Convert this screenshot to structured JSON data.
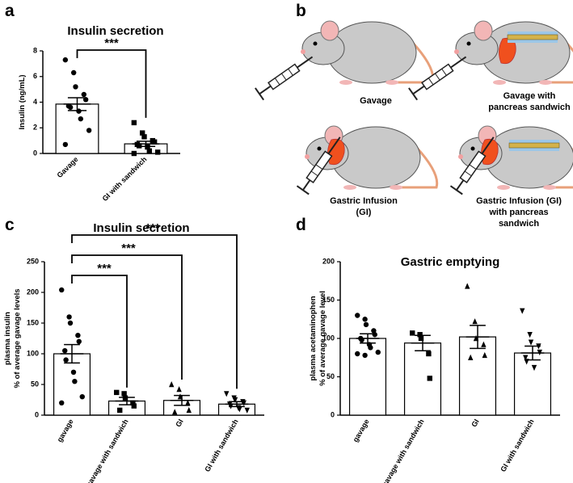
{
  "panel_labels": [
    "a",
    "b",
    "c",
    "d"
  ],
  "diagram": {
    "mice": [
      {
        "label": [
          "Gavage"
        ]
      },
      {
        "label": [
          "Gavage with",
          "pancreas sandwich"
        ]
      },
      {
        "label": [
          "Gastric Infusion",
          "(GI)"
        ]
      },
      {
        "label": [
          "Gastric Infusion (GI)",
          "with pancreas",
          "sandwich"
        ]
      }
    ]
  },
  "chart_data": [
    {
      "type": "bar",
      "title": "Insulin secretion",
      "y_label": [
        "Insulin (ng/mL)"
      ],
      "categories": [
        "Gavage",
        "GI with sandwich"
      ],
      "values": [
        3.85,
        0.75
      ],
      "errors": [
        0.5,
        0.2
      ],
      "points": [
        [
          7.3,
          6.3,
          5.2,
          4.6,
          4.2,
          3.7,
          3.6,
          3.3,
          2.7,
          1.8,
          0.7
        ],
        [
          2.4,
          1.6,
          1.3,
          1.0,
          0.9,
          0.7,
          0.6,
          0.5,
          0.2,
          0.1,
          0.0
        ]
      ],
      "markers": [
        "circle",
        "square"
      ],
      "color": "#ffffff",
      "edge_color": "#000000",
      "ylim": [
        0,
        8
      ],
      "yticks": [
        0,
        2,
        4,
        6,
        8
      ],
      "significance": [
        {
          "label": "***",
          "categories": [
            0,
            1
          ]
        }
      ]
    },
    {
      "type": "bar",
      "title": "Insulin secretion",
      "y_label": [
        "plasma insulin",
        "% of average gavage levels"
      ],
      "categories": [
        "gavage",
        "gavage with sandwich",
        "GI",
        "GI with sandwich"
      ],
      "values": [
        100,
        23,
        24,
        18
      ],
      "errors": [
        15,
        6,
        8,
        4
      ],
      "points": [
        [
          204,
          160,
          150,
          130,
          120,
          105,
          90,
          70,
          55,
          30,
          20
        ],
        [
          37,
          35,
          28,
          20,
          15,
          8
        ],
        [
          50,
          42,
          30,
          20,
          8,
          5
        ],
        [
          35,
          28,
          25,
          22,
          20,
          18,
          15,
          12,
          10,
          8
        ]
      ],
      "markers": [
        "circle",
        "square",
        "triangle",
        "triangle-down"
      ],
      "color": "#ffffff",
      "edge_color": "#000000",
      "ylim": [
        0,
        250
      ],
      "yticks": [
        0,
        50,
        100,
        150,
        200,
        250
      ],
      "significance": [
        {
          "label": "***",
          "categories": [
            0,
            1
          ]
        },
        {
          "label": "***",
          "categories": [
            0,
            2
          ]
        },
        {
          "label": "***",
          "categories": [
            0,
            3
          ]
        }
      ]
    },
    {
      "type": "bar",
      "title": "Gastric emptying",
      "y_label": [
        "plasma acetaminophen",
        "% of average gavage level"
      ],
      "categories": [
        "gavage",
        "gavage with sandwich",
        "GI",
        "GI with sandwich"
      ],
      "values": [
        100,
        94,
        102,
        81
      ],
      "errors": [
        6,
        10,
        15,
        9
      ],
      "points": [
        [
          130,
          125,
          118,
          110,
          105,
          100,
          98,
          92,
          88,
          82,
          80,
          78
        ],
        [
          107,
          105,
          100,
          80,
          48
        ],
        [
          168,
          122,
          100,
          92,
          78,
          75
        ],
        [
          136,
          105,
          95,
          90,
          82,
          75,
          70,
          62
        ]
      ],
      "markers": [
        "circle",
        "square",
        "triangle",
        "triangle-down"
      ],
      "color": "#ffffff",
      "edge_color": "#000000",
      "ylim": [
        0,
        200
      ],
      "yticks": [
        0,
        50,
        100,
        150,
        200
      ]
    }
  ]
}
